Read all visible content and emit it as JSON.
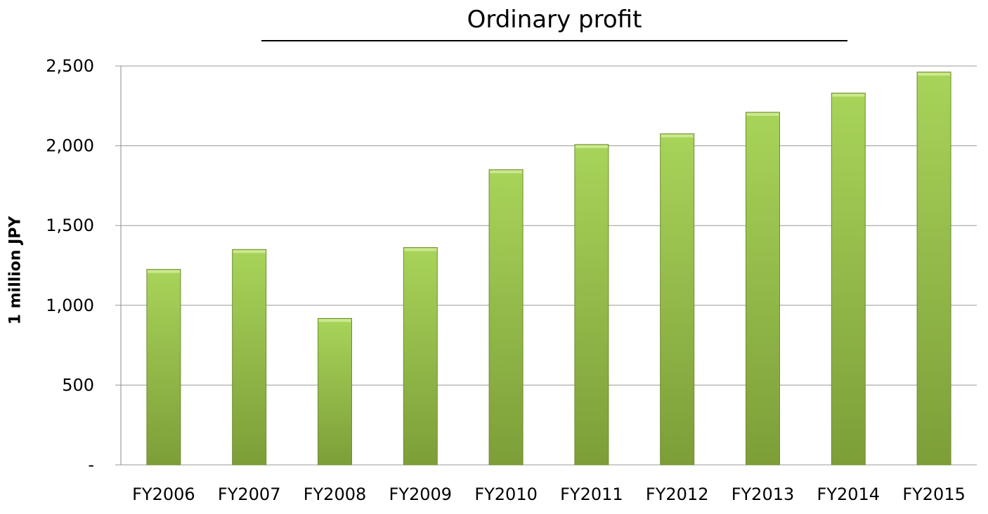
{
  "chart_data": {
    "type": "bar",
    "title": "Ordinary profit",
    "xlabel": "",
    "ylabel": "1 million JPY",
    "categories": [
      "FY2006",
      "FY2007",
      "FY2008",
      "FY2009",
      "FY2010",
      "FY2011",
      "FY2012",
      "FY2013",
      "FY2014",
      "FY2015"
    ],
    "values": [
      1225,
      1350,
      918,
      1362,
      1850,
      2008,
      2075,
      2210,
      2330,
      2462
    ],
    "ylim": [
      0,
      2500
    ],
    "yticks": [
      0,
      500,
      1000,
      1500,
      2000,
      2500
    ],
    "ytick_labels": [
      "-",
      "500",
      "1,000",
      "1,500",
      "2,000",
      "2,500"
    ],
    "grid": true,
    "legend": "none",
    "colors": {
      "bar_top": "#a8d45a",
      "bar_bottom": "#7d9e38",
      "bar_edge": "#6e8c30",
      "grid": "#999999",
      "axis": "#888888"
    }
  }
}
